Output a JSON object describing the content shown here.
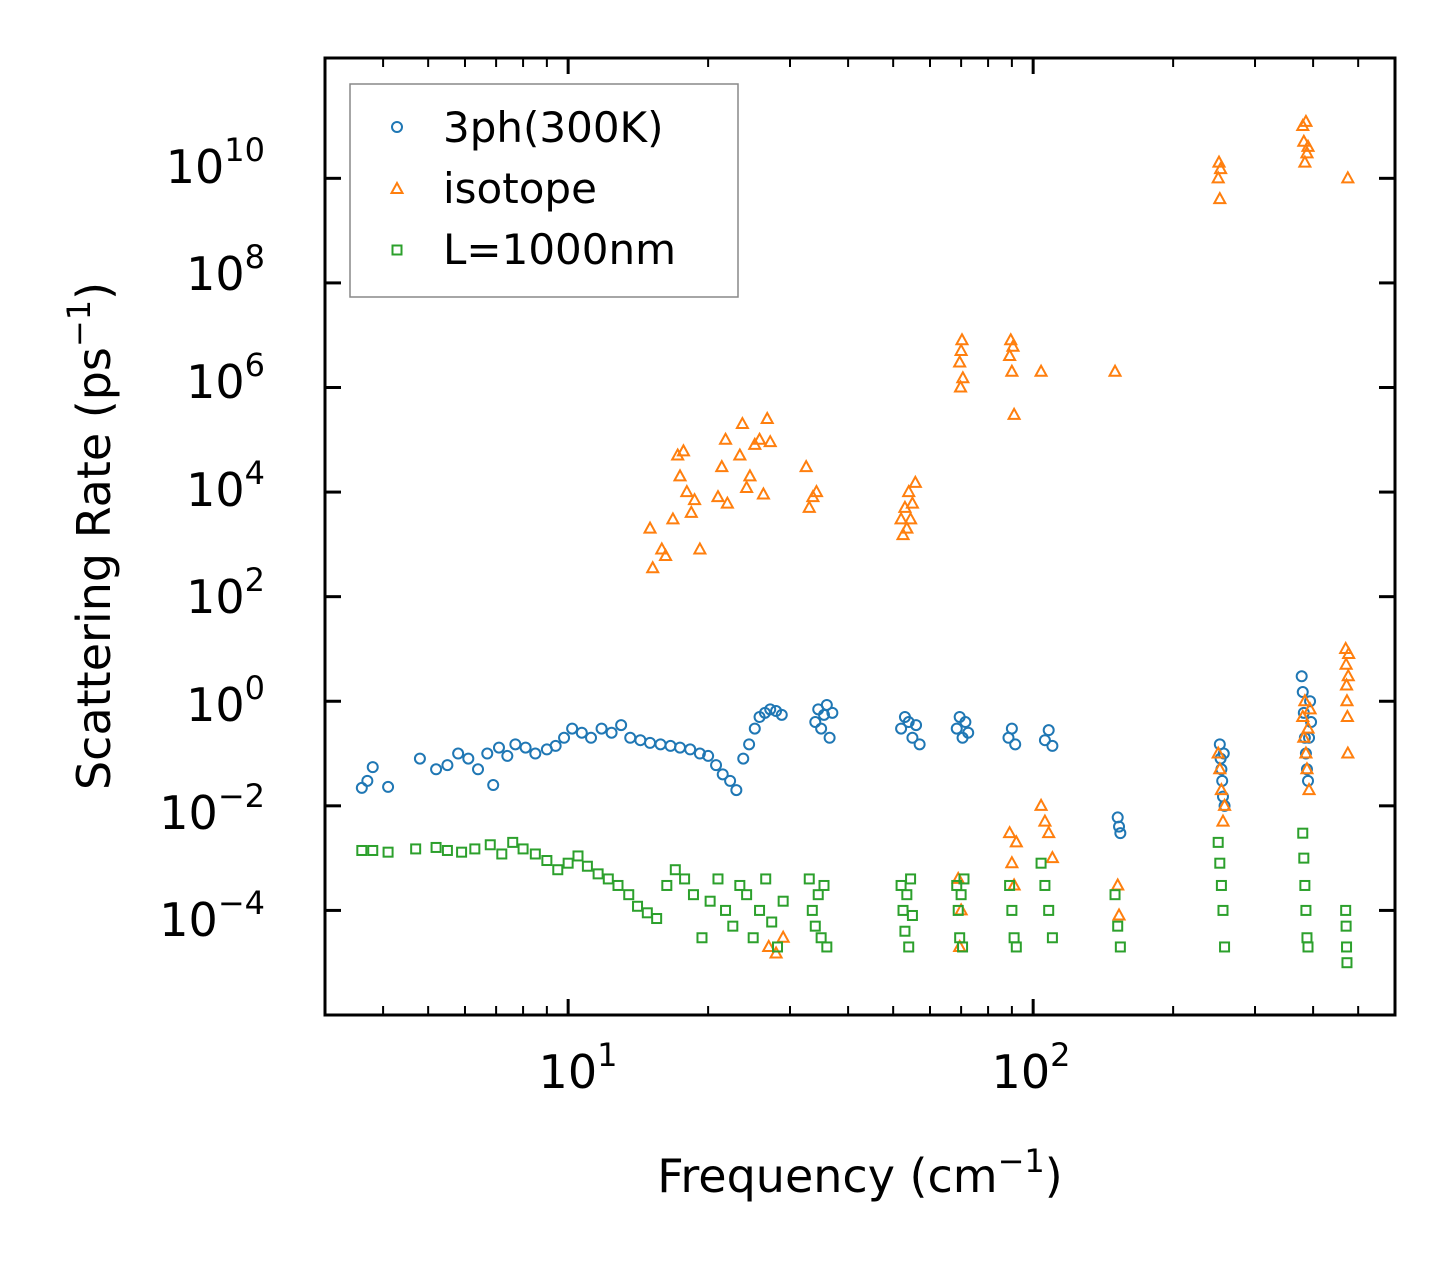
{
  "chart_data": {
    "type": "scatter",
    "title": "",
    "xlabel": {
      "main": "Frequency (cm",
      "sup": "−1",
      "close": ")"
    },
    "ylabel": {
      "main": "Scattering Rate (ps",
      "sup": "−1",
      "close": ")"
    },
    "xscale": "log",
    "yscale": "log",
    "xlim": [
      3.0,
      600
    ],
    "ylim": [
      1e-06,
      2000000000000.0
    ],
    "xticks": [
      {
        "value": 10,
        "base": "10",
        "exp": "1"
      },
      {
        "value": 100,
        "base": "10",
        "exp": "2"
      }
    ],
    "yticks": [
      {
        "value": 0.0001,
        "base": "10",
        "exp": "−4"
      },
      {
        "value": 0.01,
        "base": "10",
        "exp": "−2"
      },
      {
        "value": 1,
        "base": "10",
        "exp": "0"
      },
      {
        "value": 100,
        "base": "10",
        "exp": "2"
      },
      {
        "value": 10000.0,
        "base": "10",
        "exp": "4"
      },
      {
        "value": 1000000.0,
        "base": "10",
        "exp": "6"
      },
      {
        "value": 100000000.0,
        "base": "10",
        "exp": "8"
      },
      {
        "value": 10000000000.0,
        "base": "10",
        "exp": "10"
      }
    ],
    "legend_position": "top-left",
    "series": [
      {
        "name": "3ph(300K)",
        "marker": "circle",
        "color": "#1f77b4",
        "points": [
          [
            3.6,
            0.022
          ],
          [
            3.7,
            0.03
          ],
          [
            3.8,
            0.055
          ],
          [
            4.1,
            0.023
          ],
          [
            4.8,
            0.08
          ],
          [
            5.2,
            0.05
          ],
          [
            5.5,
            0.06
          ],
          [
            5.8,
            0.1
          ],
          [
            6.1,
            0.08
          ],
          [
            6.4,
            0.05
          ],
          [
            6.7,
            0.1
          ],
          [
            6.9,
            0.025
          ],
          [
            7.1,
            0.13
          ],
          [
            7.4,
            0.09
          ],
          [
            7.7,
            0.15
          ],
          [
            8.1,
            0.13
          ],
          [
            8.5,
            0.1
          ],
          [
            9.0,
            0.12
          ],
          [
            9.4,
            0.14
          ],
          [
            9.8,
            0.2
          ],
          [
            10.2,
            0.3
          ],
          [
            10.7,
            0.25
          ],
          [
            11.2,
            0.2
          ],
          [
            11.8,
            0.3
          ],
          [
            12.4,
            0.25
          ],
          [
            13.0,
            0.35
          ],
          [
            13.6,
            0.2
          ],
          [
            14.3,
            0.18
          ],
          [
            15.0,
            0.16
          ],
          [
            15.8,
            0.15
          ],
          [
            16.6,
            0.14
          ],
          [
            17.4,
            0.13
          ],
          [
            18.3,
            0.12
          ],
          [
            19.2,
            0.1
          ],
          [
            20.0,
            0.09
          ],
          [
            20.8,
            0.06
          ],
          [
            21.5,
            0.04
          ],
          [
            22.3,
            0.03
          ],
          [
            23.0,
            0.02
          ],
          [
            23.8,
            0.08
          ],
          [
            24.5,
            0.15
          ],
          [
            25.2,
            0.3
          ],
          [
            25.8,
            0.5
          ],
          [
            26.5,
            0.6
          ],
          [
            27.2,
            0.7
          ],
          [
            28.0,
            0.65
          ],
          [
            28.8,
            0.55
          ],
          [
            34.0,
            0.4
          ],
          [
            34.5,
            0.7
          ],
          [
            35.0,
            0.3
          ],
          [
            35.5,
            0.55
          ],
          [
            36.0,
            0.85
          ],
          [
            36.5,
            0.2
          ],
          [
            37.0,
            0.6
          ],
          [
            52.0,
            0.3
          ],
          [
            53.0,
            0.5
          ],
          [
            54.0,
            0.4
          ],
          [
            55.0,
            0.2
          ],
          [
            56.0,
            0.35
          ],
          [
            57.0,
            0.15
          ],
          [
            68.5,
            0.3
          ],
          [
            69.5,
            0.5
          ],
          [
            70.5,
            0.2
          ],
          [
            71.5,
            0.4
          ],
          [
            72.5,
            0.25
          ],
          [
            88.5,
            0.2
          ],
          [
            90.0,
            0.3
          ],
          [
            91.5,
            0.15
          ],
          [
            106,
            0.18
          ],
          [
            108,
            0.28
          ],
          [
            110,
            0.14
          ],
          [
            152,
            0.006
          ],
          [
            153,
            0.004
          ],
          [
            154,
            0.003
          ],
          [
            252,
            0.15
          ],
          [
            253,
            0.08
          ],
          [
            254,
            0.05
          ],
          [
            255,
            0.03
          ],
          [
            256,
            0.015
          ],
          [
            257,
            0.1
          ],
          [
            258,
            0.01
          ],
          [
            378,
            3.0
          ],
          [
            380,
            1.5
          ],
          [
            382,
            0.6
          ],
          [
            384,
            0.2
          ],
          [
            386,
            0.1
          ],
          [
            388,
            0.05
          ],
          [
            390,
            0.03
          ],
          [
            392,
            0.2
          ],
          [
            394,
            1.0
          ],
          [
            396,
            0.4
          ]
        ]
      },
      {
        "name": "isotope",
        "marker": "triangle",
        "color": "#ff7f0e",
        "points": [
          [
            15.0,
            2000
          ],
          [
            15.2,
            350
          ],
          [
            15.9,
            800
          ],
          [
            16.2,
            600
          ],
          [
            16.8,
            3000
          ],
          [
            17.2,
            50000
          ],
          [
            17.4,
            20000
          ],
          [
            17.7,
            60000
          ],
          [
            18.0,
            10000
          ],
          [
            18.4,
            4000
          ],
          [
            18.7,
            7000
          ],
          [
            19.2,
            800
          ],
          [
            21.0,
            8000
          ],
          [
            21.4,
            30000
          ],
          [
            21.8,
            100000
          ],
          [
            22.0,
            6000
          ],
          [
            23.4,
            50000
          ],
          [
            23.7,
            200000
          ],
          [
            24.2,
            12000
          ],
          [
            24.6,
            20000
          ],
          [
            25.2,
            80000
          ],
          [
            25.8,
            100000
          ],
          [
            26.3,
            9000
          ],
          [
            26.8,
            250000
          ],
          [
            27.2,
            90000
          ],
          [
            32.5,
            30000
          ],
          [
            33.0,
            5000
          ],
          [
            33.6,
            8000
          ],
          [
            34.2,
            10000
          ],
          [
            52.0,
            3000
          ],
          [
            52.5,
            1500
          ],
          [
            53.0,
            5000
          ],
          [
            53.5,
            2000
          ],
          [
            54.0,
            10000
          ],
          [
            54.5,
            3000
          ],
          [
            55.0,
            6000
          ],
          [
            55.8,
            15000
          ],
          [
            69.5,
            3000000
          ],
          [
            69.8,
            1000000
          ],
          [
            70.0,
            5000000
          ],
          [
            70.3,
            8000000
          ],
          [
            70.6,
            1500000
          ],
          [
            89.0,
            4000000
          ],
          [
            89.5,
            8000000
          ],
          [
            90.0,
            2000000
          ],
          [
            90.5,
            6000000
          ],
          [
            91.0,
            300000
          ],
          [
            104,
            2000000
          ],
          [
            150,
            2000000
          ],
          [
            250,
            10000000000
          ],
          [
            251,
            20000000000
          ],
          [
            252,
            4000000000
          ],
          [
            253,
            15000000000
          ],
          [
            380,
            100000000000
          ],
          [
            382,
            50000000000
          ],
          [
            384,
            20000000000
          ],
          [
            386,
            120000000000
          ],
          [
            388,
            30000000000
          ],
          [
            390,
            40000000000
          ],
          [
            475,
            10000000000
          ],
          [
            27.0,
            2e-05
          ],
          [
            28.0,
            1.5e-05
          ],
          [
            29.0,
            3e-05
          ],
          [
            69.0,
            0.0004
          ],
          [
            69.5,
            2e-05
          ],
          [
            70.0,
            0.0001
          ],
          [
            89.0,
            0.003
          ],
          [
            90.0,
            0.0008
          ],
          [
            91.0,
            0.0003
          ],
          [
            92.0,
            0.002
          ],
          [
            104,
            0.01
          ],
          [
            106,
            0.005
          ],
          [
            108,
            0.003
          ],
          [
            110,
            0.001
          ],
          [
            152,
            0.0003
          ],
          [
            153,
            8e-05
          ],
          [
            250,
            0.1
          ],
          [
            252,
            0.05
          ],
          [
            254,
            0.02
          ],
          [
            256,
            0.005
          ],
          [
            258,
            0.01
          ],
          [
            380,
            0.5
          ],
          [
            382,
            0.2
          ],
          [
            384,
            1.0
          ],
          [
            386,
            0.1
          ],
          [
            388,
            0.05
          ],
          [
            390,
            0.3
          ],
          [
            392,
            0.02
          ],
          [
            394,
            0.7
          ],
          [
            470,
            10.0
          ],
          [
            471,
            5.0
          ],
          [
            472,
            2.0
          ],
          [
            473,
            1.0
          ],
          [
            474,
            0.5
          ],
          [
            475,
            0.1
          ],
          [
            476,
            3.0
          ],
          [
            477,
            8.0
          ]
        ]
      },
      {
        "name": "L=1000nm",
        "marker": "square",
        "color": "#2ca02c",
        "points": [
          [
            3.6,
            0.0014
          ],
          [
            3.8,
            0.0014
          ],
          [
            4.1,
            0.0013
          ],
          [
            4.7,
            0.0015
          ],
          [
            5.2,
            0.0016
          ],
          [
            5.5,
            0.0014
          ],
          [
            5.9,
            0.0013
          ],
          [
            6.3,
            0.0015
          ],
          [
            6.8,
            0.0018
          ],
          [
            7.2,
            0.0012
          ],
          [
            7.6,
            0.002
          ],
          [
            8.0,
            0.0015
          ],
          [
            8.5,
            0.0012
          ],
          [
            9.0,
            0.0009
          ],
          [
            9.5,
            0.0006
          ],
          [
            10.0,
            0.0008
          ],
          [
            10.5,
            0.0011
          ],
          [
            11.0,
            0.0007
          ],
          [
            11.6,
            0.0005
          ],
          [
            12.2,
            0.0004
          ],
          [
            12.8,
            0.0003
          ],
          [
            13.5,
            0.0002
          ],
          [
            14.1,
            0.00012
          ],
          [
            14.8,
            9e-05
          ],
          [
            15.5,
            7e-05
          ],
          [
            16.3,
            0.0003
          ],
          [
            17.0,
            0.0006
          ],
          [
            17.8,
            0.0004
          ],
          [
            18.6,
            0.0002
          ],
          [
            19.4,
            3e-05
          ],
          [
            20.2,
            0.00015
          ],
          [
            21.0,
            0.0004
          ],
          [
            21.8,
            0.0001
          ],
          [
            22.6,
            5e-05
          ],
          [
            23.4,
            0.0003
          ],
          [
            24.2,
            0.0002
          ],
          [
            25.0,
            3e-05
          ],
          [
            25.8,
            0.0001
          ],
          [
            26.6,
            0.0004
          ],
          [
            27.4,
            6e-05
          ],
          [
            28.2,
            2e-05
          ],
          [
            29.0,
            0.00015
          ],
          [
            33.0,
            0.0004
          ],
          [
            33.5,
            0.0001
          ],
          [
            34.0,
            5e-05
          ],
          [
            34.5,
            0.0002
          ],
          [
            35.0,
            3e-05
          ],
          [
            35.5,
            0.0003
          ],
          [
            36.0,
            2e-05
          ],
          [
            52.0,
            0.0003
          ],
          [
            52.5,
            0.0001
          ],
          [
            53.0,
            4e-05
          ],
          [
            53.5,
            0.0002
          ],
          [
            54.0,
            2e-05
          ],
          [
            54.5,
            0.0004
          ],
          [
            55.0,
            8e-05
          ],
          [
            68.5,
            0.0003
          ],
          [
            69.0,
            0.0001
          ],
          [
            69.5,
            3e-05
          ],
          [
            70.0,
            0.0002
          ],
          [
            70.5,
            2e-05
          ],
          [
            71.0,
            0.0004
          ],
          [
            89.0,
            0.0003
          ],
          [
            90.0,
            0.0001
          ],
          [
            91.0,
            3e-05
          ],
          [
            92.0,
            2e-05
          ],
          [
            104,
            0.0008
          ],
          [
            106,
            0.0003
          ],
          [
            108,
            0.0001
          ],
          [
            110,
            3e-05
          ],
          [
            150,
            0.0002
          ],
          [
            152,
            5e-05
          ],
          [
            154,
            2e-05
          ],
          [
            250,
            0.002
          ],
          [
            252,
            0.0008
          ],
          [
            254,
            0.0003
          ],
          [
            256,
            0.0001
          ],
          [
            258,
            2e-05
          ],
          [
            380,
            0.003
          ],
          [
            382,
            0.001
          ],
          [
            384,
            0.0003
          ],
          [
            386,
            0.0001
          ],
          [
            388,
            3e-05
          ],
          [
            390,
            2e-05
          ],
          [
            470,
            0.0001
          ],
          [
            471,
            5e-05
          ],
          [
            472,
            2e-05
          ],
          [
            473,
            1e-05
          ]
        ]
      }
    ]
  }
}
